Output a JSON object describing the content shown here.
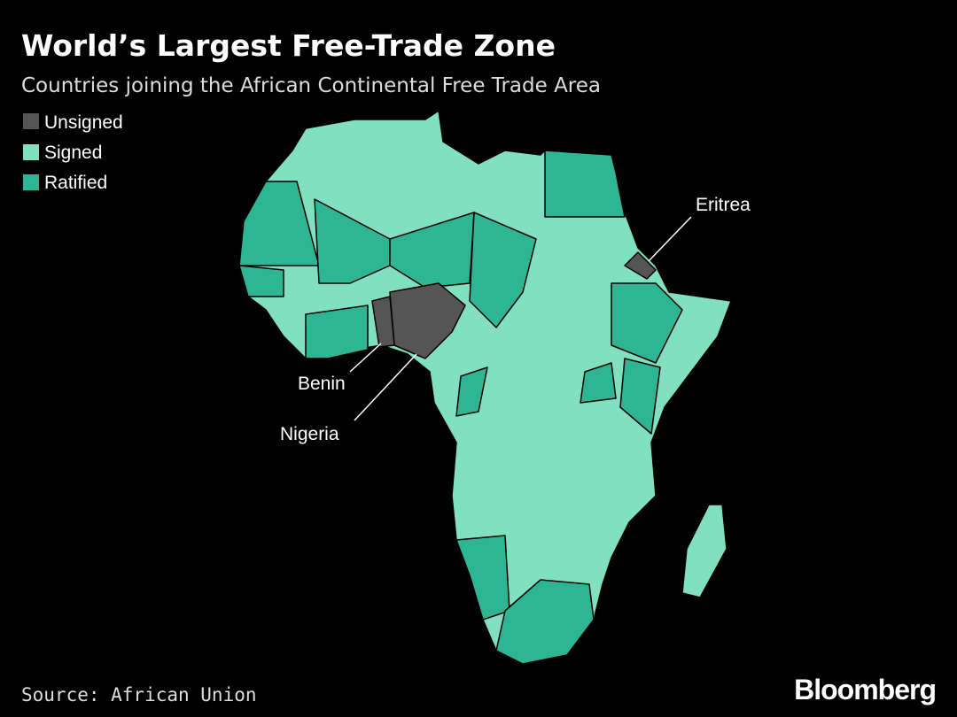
{
  "header": {
    "title": "World’s Largest Free-Trade Zone",
    "subtitle": "Countries joining the African Continental Free Trade Area"
  },
  "legend": [
    {
      "label": "Unsigned",
      "color": "#555555"
    },
    {
      "label": "Signed",
      "color": "#80e0bf"
    },
    {
      "label": "Ratified",
      "color": "#2db594"
    }
  ],
  "annotations": [
    "Eritrea",
    "Benin",
    "Nigeria"
  ],
  "footer": {
    "source": "Source: African Union",
    "logo": "Bloomberg"
  }
}
